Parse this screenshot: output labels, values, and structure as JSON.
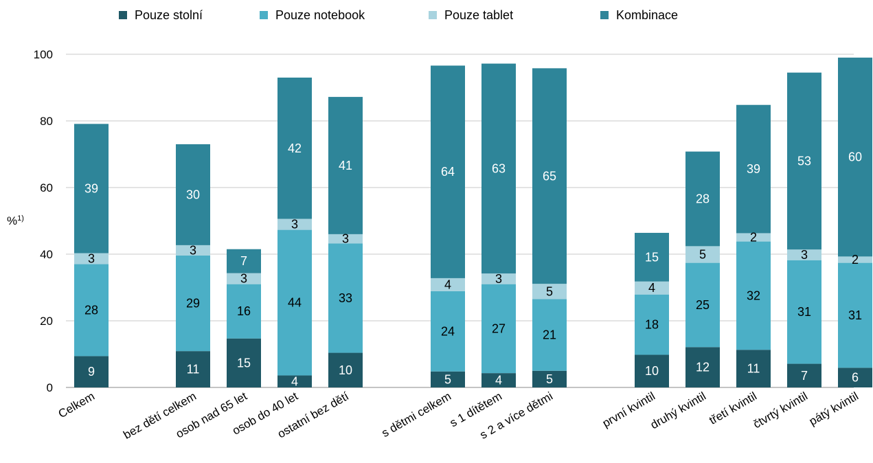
{
  "chart_data": {
    "type": "bar",
    "stacked": true,
    "title": "",
    "xlabel": "",
    "ylabel": "%",
    "ylabel_superscript": "1)",
    "ylim": [
      0,
      100
    ],
    "yticks": [
      0,
      20,
      40,
      60,
      80,
      100
    ],
    "grid": true,
    "legend_position": "top",
    "groups": [
      [
        0
      ],
      [
        1,
        2,
        3,
        4
      ],
      [
        5,
        6,
        7
      ],
      [
        8,
        9,
        10,
        11,
        12
      ]
    ],
    "categories": [
      "Celkem",
      "bez dětí celkem",
      "osob nad 65 let",
      "osob do 40 let",
      "ostatní  bez dětí",
      "s dětmi celkem",
      "s 1 dítětem",
      "s 2 a více dětmi",
      "první kvintil",
      "druhý kvintil",
      "třetí kvintil",
      "čtvrtý kvintil",
      "pátý kvintil"
    ],
    "series": [
      {
        "name": "Pouze stolní",
        "color": "#1f5866",
        "label_color": "#ffffff",
        "values": [
          9.4,
          10.9,
          14.7,
          3.6,
          10.4,
          4.8,
          4.3,
          5.0,
          9.8,
          12.1,
          11.3,
          7.1,
          5.9
        ],
        "labels": [
          "9",
          "11",
          "15",
          "4",
          "10",
          "5",
          "4",
          "5",
          "10",
          "12",
          "11",
          "7",
          "6"
        ]
      },
      {
        "name": "Pouze notebook",
        "color": "#4bafc6",
        "label_color": "#000000",
        "values": [
          27.6,
          28.7,
          16.3,
          43.7,
          32.8,
          24.1,
          26.7,
          21.5,
          18.1,
          25.3,
          32.5,
          31.1,
          31.5
        ],
        "labels": [
          "28",
          "29",
          "16",
          "44",
          "33",
          "24",
          "27",
          "21",
          "18",
          "25",
          "32",
          "31",
          "31"
        ]
      },
      {
        "name": "Pouze tablet",
        "color": "#a8d3df",
        "label_color": "#000000",
        "values": [
          3.3,
          3.1,
          3.3,
          3.3,
          2.8,
          3.9,
          3.2,
          4.6,
          3.9,
          5.0,
          2.5,
          3.2,
          1.9
        ],
        "labels": [
          "3",
          "3",
          "3",
          "3",
          "3",
          "4",
          "3",
          "5",
          "4",
          "5",
          "2",
          "3",
          "2"
        ]
      },
      {
        "name": "Kombinace",
        "color": "#2e8599",
        "label_color": "#ffffff",
        "values": [
          38.8,
          30.3,
          7.2,
          42.4,
          41.2,
          63.8,
          63.0,
          64.7,
          14.6,
          28.4,
          38.5,
          53.1,
          59.7
        ],
        "labels": [
          "39",
          "30",
          "7",
          "42",
          "41",
          "64",
          "63",
          "65",
          "15",
          "28",
          "39",
          "53",
          "60"
        ]
      }
    ]
  }
}
